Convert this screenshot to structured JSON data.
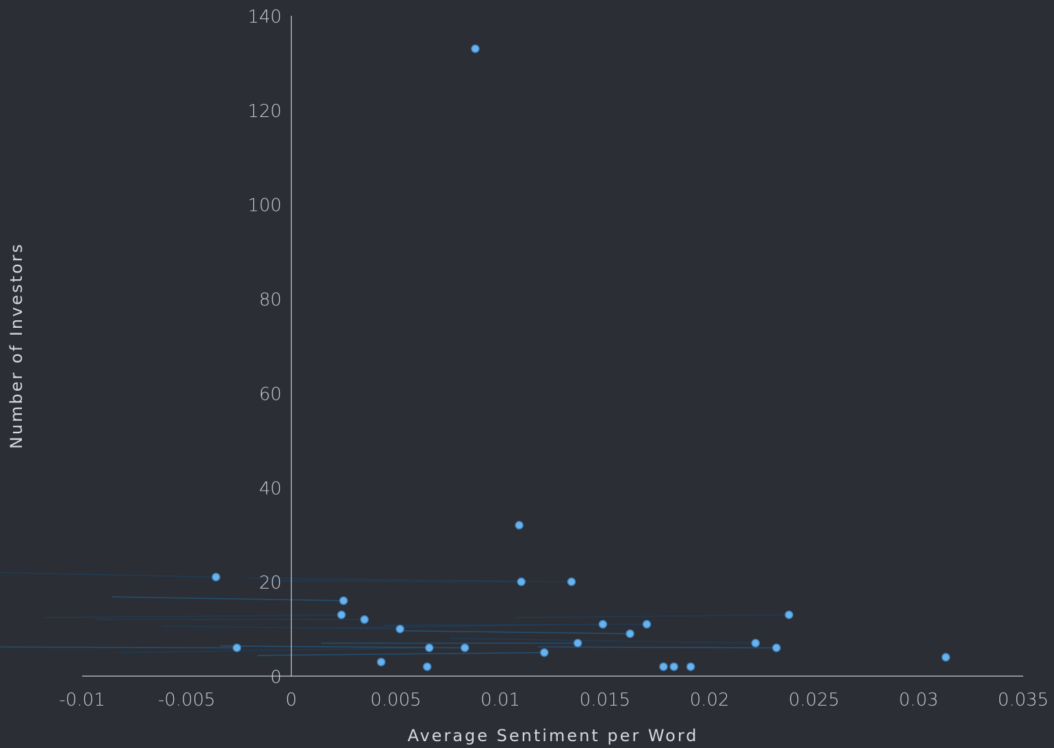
{
  "chart_data": {
    "type": "scatter",
    "title": "",
    "xlabel": "Average Sentiment per Word",
    "ylabel": "Number of Investors",
    "xlim": [
      -0.01,
      0.035
    ],
    "ylim": [
      0,
      140
    ],
    "x_ticks": [
      "-0.01",
      "-0.005",
      "0",
      "0.005",
      "0.01",
      "0.015",
      "0.02",
      "0.025",
      "0.03",
      "0.035"
    ],
    "y_ticks": [
      "0",
      "20",
      "40",
      "60",
      "80",
      "100",
      "120",
      "140"
    ],
    "grid": false,
    "legend": "none",
    "point_color": "#6ab2ec",
    "series": [
      {
        "points": [
          {
            "x": -0.0036,
            "y": 21
          },
          {
            "x": -0.0026,
            "y": 6
          },
          {
            "x": 0.0024,
            "y": 13
          },
          {
            "x": 0.0025,
            "y": 16
          },
          {
            "x": 0.0035,
            "y": 12
          },
          {
            "x": 0.0043,
            "y": 3
          },
          {
            "x": 0.0052,
            "y": 10
          },
          {
            "x": 0.0065,
            "y": 2
          },
          {
            "x": 0.0066,
            "y": 6
          },
          {
            "x": 0.0083,
            "y": 6
          },
          {
            "x": 0.0088,
            "y": 133
          },
          {
            "x": 0.0109,
            "y": 32
          },
          {
            "x": 0.011,
            "y": 20
          },
          {
            "x": 0.0121,
            "y": 5
          },
          {
            "x": 0.0134,
            "y": 20
          },
          {
            "x": 0.0137,
            "y": 7
          },
          {
            "x": 0.0149,
            "y": 11
          },
          {
            "x": 0.0162,
            "y": 9
          },
          {
            "x": 0.017,
            "y": 11
          },
          {
            "x": 0.0178,
            "y": 2
          },
          {
            "x": 0.0183,
            "y": 2
          },
          {
            "x": 0.0191,
            "y": 2
          },
          {
            "x": 0.0222,
            "y": 7
          },
          {
            "x": 0.0232,
            "y": 6
          },
          {
            "x": 0.0238,
            "y": 13
          },
          {
            "x": 0.0313,
            "y": 4
          }
        ]
      }
    ]
  }
}
